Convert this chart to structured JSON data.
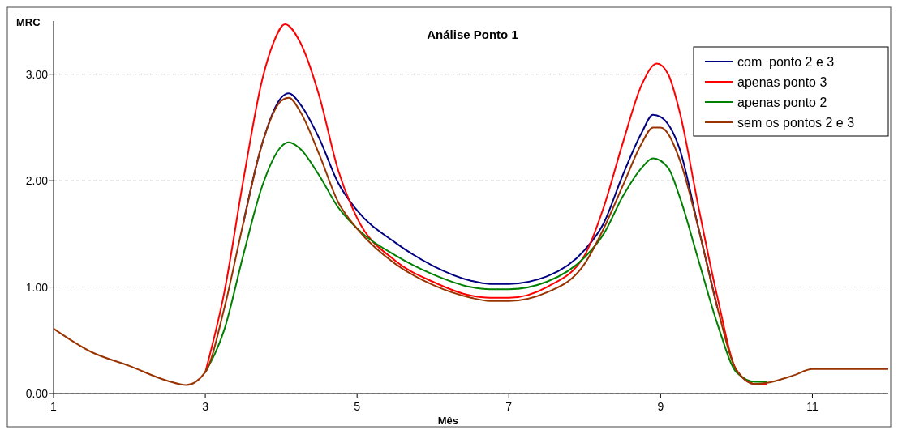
{
  "chart_data": {
    "type": "line",
    "title": "Análise Ponto 1",
    "xlabel": "Mês",
    "ylabel": "MRC",
    "xlim": [
      1,
      12
    ],
    "xticks": [
      1,
      3,
      5,
      7,
      9,
      11
    ],
    "ylim": [
      0,
      3.5
    ],
    "yticks": [
      {
        "value": 0,
        "label": "0.00"
      },
      {
        "value": 1,
        "label": "1.00"
      },
      {
        "value": 2,
        "label": "2.00"
      },
      {
        "value": 3,
        "label": "3.00"
      }
    ],
    "grid": "y",
    "legend": "top right",
    "marker": "none",
    "line_style": "solid",
    "series": [
      {
        "name": "com  ponto 2 e 3",
        "color": "#000080",
        "x": [
          3.5,
          3.75,
          4,
          4.1,
          4.25,
          4.5,
          4.75,
          5,
          5.5,
          6,
          6.5,
          6.75,
          7,
          7.5,
          8,
          8.25,
          8.5,
          8.75,
          8.9,
          9,
          9.25,
          9.5,
          9.75
        ],
        "values": [
          1.6,
          2.35,
          2.78,
          2.82,
          2.72,
          2.4,
          1.98,
          1.72,
          1.42,
          1.2,
          1.06,
          1.03,
          1.03,
          1.1,
          1.35,
          1.6,
          2.05,
          2.45,
          2.62,
          2.6,
          2.3,
          1.55,
          0.8
        ]
      },
      {
        "name": "apenas ponto 3",
        "color": "#ff0000",
        "x": [
          3,
          3.25,
          3.5,
          3.75,
          3.9,
          4.05,
          4.25,
          4.5,
          4.75,
          5,
          5.5,
          6,
          6.5,
          6.75,
          7,
          7.5,
          8,
          8.25,
          8.5,
          8.75,
          8.95,
          9.1,
          9.25,
          9.5,
          9.75,
          10,
          10.25,
          10.4
        ],
        "values": [
          0.2,
          0.95,
          2.0,
          2.95,
          3.3,
          3.47,
          3.3,
          2.8,
          2.1,
          1.65,
          1.25,
          1.05,
          0.92,
          0.9,
          0.9,
          1.0,
          1.3,
          1.75,
          2.35,
          2.9,
          3.1,
          3.0,
          2.65,
          1.75,
          0.9,
          0.22,
          0.09,
          0.09
        ]
      },
      {
        "name": "apenas ponto 2",
        "color": "#008000",
        "x": [
          3,
          3.25,
          3.5,
          3.75,
          4,
          4.1,
          4.25,
          4.5,
          4.75,
          5,
          5.5,
          6,
          6.5,
          6.75,
          7,
          7.5,
          8,
          8.25,
          8.5,
          8.75,
          8.9,
          9.1,
          9.25,
          9.5,
          9.75,
          10,
          10.25,
          10.4
        ],
        "values": [
          0.2,
          0.6,
          1.3,
          1.95,
          2.32,
          2.36,
          2.3,
          2.05,
          1.75,
          1.55,
          1.3,
          1.12,
          1.0,
          0.98,
          0.98,
          1.05,
          1.28,
          1.5,
          1.85,
          2.12,
          2.21,
          2.12,
          1.85,
          1.25,
          0.65,
          0.2,
          0.11,
          0.11
        ]
      },
      {
        "name": "sem os pontos 2 e 3",
        "color": "#993300",
        "x": [
          1,
          1.5,
          2,
          2.5,
          2.75,
          3,
          3.25,
          3.5,
          3.75,
          4,
          4.1,
          4.25,
          4.5,
          4.75,
          5,
          5.5,
          6,
          6.5,
          6.75,
          7,
          7.5,
          8,
          8.25,
          8.5,
          8.75,
          8.9,
          9,
          9.25,
          9.5,
          9.75,
          10,
          10.25,
          10.4,
          10.75,
          11,
          12
        ],
        "values": [
          0.61,
          0.39,
          0.26,
          0.12,
          0.08,
          0.2,
          0.8,
          1.6,
          2.35,
          2.75,
          2.78,
          2.65,
          2.25,
          1.8,
          1.55,
          1.22,
          1.02,
          0.9,
          0.87,
          0.87,
          0.95,
          1.22,
          1.55,
          1.95,
          2.35,
          2.5,
          2.5,
          2.2,
          1.55,
          0.8,
          0.22,
          0.09,
          0.1,
          0.17,
          0.23,
          0.23
        ]
      }
    ]
  }
}
